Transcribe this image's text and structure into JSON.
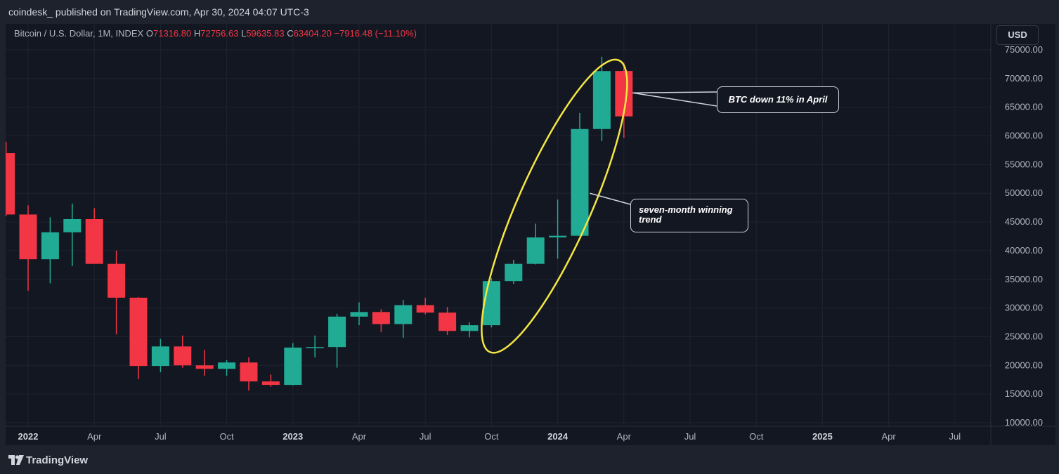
{
  "header": {
    "publish_line": "coindesk_ published on TradingView.com, Apr 30, 2024 04:07 UTC-3"
  },
  "legend": {
    "symbol": "Bitcoin / U.S. Dollar, 1M, INDEX",
    "open_label": "O",
    "open": "71316.80",
    "high_label": "H",
    "high": "72756.63",
    "low_label": "L",
    "low": "59635.83",
    "close_label": "C",
    "close": "63404.20",
    "change": "−7916.48 (−11.10%)"
  },
  "currency_button": "USD",
  "footer": {
    "brand": "TradingView"
  },
  "colors": {
    "up": "#22ab94",
    "down": "#f23645",
    "highlight_ellipse": "#f5e642",
    "background": "#131722"
  },
  "annotations": [
    {
      "text": "BTC down 11% in April"
    },
    {
      "text_line1": "seven-month winning",
      "text_line2": "trend"
    }
  ],
  "chart_data": {
    "type": "candlestick",
    "ylim": [
      10000,
      76000
    ],
    "y_ticks": [
      "75000.00",
      "70000.00",
      "65000.00",
      "60000.00",
      "55000.00",
      "50000.00",
      "45000.00",
      "40000.00",
      "35000.00",
      "30000.00",
      "25000.00",
      "20000.00",
      "15000.00",
      "10000.00"
    ],
    "x_ticks": [
      {
        "label": "2022",
        "index": 0,
        "bold": true
      },
      {
        "label": "Apr",
        "index": 3
      },
      {
        "label": "Jul",
        "index": 6
      },
      {
        "label": "Oct",
        "index": 9
      },
      {
        "label": "2023",
        "index": 12,
        "bold": true
      },
      {
        "label": "Apr",
        "index": 15
      },
      {
        "label": "Jul",
        "index": 18
      },
      {
        "label": "Oct",
        "index": 21
      },
      {
        "label": "2024",
        "index": 24,
        "bold": true
      },
      {
        "label": "Apr",
        "index": 27
      },
      {
        "label": "Jul",
        "index": 30
      },
      {
        "label": "Oct",
        "index": 33
      },
      {
        "label": "2025",
        "index": 36,
        "bold": true
      },
      {
        "label": "Apr",
        "index": 39
      },
      {
        "label": "Jul",
        "index": 42
      }
    ],
    "candles": [
      {
        "date": "2021-12",
        "open": 57000,
        "high": 59000,
        "low": 46000,
        "close": 46300
      },
      {
        "date": "2022-01",
        "open": 46300,
        "high": 47900,
        "low": 33000,
        "close": 38500
      },
      {
        "date": "2022-02",
        "open": 38500,
        "high": 45800,
        "low": 34300,
        "close": 43200
      },
      {
        "date": "2022-03",
        "open": 43200,
        "high": 48200,
        "low": 37300,
        "close": 45500
      },
      {
        "date": "2022-04",
        "open": 45500,
        "high": 47400,
        "low": 37700,
        "close": 37700
      },
      {
        "date": "2022-05",
        "open": 37700,
        "high": 40000,
        "low": 25400,
        "close": 31800
      },
      {
        "date": "2022-06",
        "open": 31800,
        "high": 31900,
        "low": 17600,
        "close": 19900
      },
      {
        "date": "2022-07",
        "open": 19900,
        "high": 24600,
        "low": 18800,
        "close": 23300
      },
      {
        "date": "2022-08",
        "open": 23300,
        "high": 25200,
        "low": 19600,
        "close": 20000
      },
      {
        "date": "2022-09",
        "open": 20000,
        "high": 22700,
        "low": 18200,
        "close": 19400
      },
      {
        "date": "2022-10",
        "open": 19400,
        "high": 20900,
        "low": 18200,
        "close": 20500
      },
      {
        "date": "2022-11",
        "open": 20500,
        "high": 21400,
        "low": 15600,
        "close": 17200
      },
      {
        "date": "2022-12",
        "open": 17200,
        "high": 18400,
        "low": 16300,
        "close": 16600
      },
      {
        "date": "2023-01",
        "open": 16600,
        "high": 23900,
        "low": 16500,
        "close": 23100
      },
      {
        "date": "2023-02",
        "open": 23100,
        "high": 25200,
        "low": 21400,
        "close": 23200
      },
      {
        "date": "2023-03",
        "open": 23200,
        "high": 29000,
        "low": 19600,
        "close": 28500
      },
      {
        "date": "2023-04",
        "open": 28500,
        "high": 31000,
        "low": 27000,
        "close": 29300
      },
      {
        "date": "2023-05",
        "open": 29300,
        "high": 29800,
        "low": 25800,
        "close": 27200
      },
      {
        "date": "2023-06",
        "open": 27200,
        "high": 31400,
        "low": 24800,
        "close": 30500
      },
      {
        "date": "2023-07",
        "open": 30500,
        "high": 31800,
        "low": 28900,
        "close": 29200
      },
      {
        "date": "2023-08",
        "open": 29200,
        "high": 30200,
        "low": 25300,
        "close": 26000
      },
      {
        "date": "2023-09",
        "open": 26000,
        "high": 27500,
        "low": 24900,
        "close": 27000
      },
      {
        "date": "2023-10",
        "open": 27000,
        "high": 35200,
        "low": 26600,
        "close": 34700
      },
      {
        "date": "2023-11",
        "open": 34700,
        "high": 38400,
        "low": 34200,
        "close": 37700
      },
      {
        "date": "2023-12",
        "open": 37700,
        "high": 44700,
        "low": 37600,
        "close": 42300
      },
      {
        "date": "2024-01",
        "open": 42300,
        "high": 48900,
        "low": 38600,
        "close": 42600
      },
      {
        "date": "2024-02",
        "open": 42600,
        "high": 64000,
        "low": 42800,
        "close": 61200
      },
      {
        "date": "2024-03",
        "open": 61200,
        "high": 73800,
        "low": 59100,
        "close": 71300
      },
      {
        "date": "2024-04",
        "open": 71316.8,
        "high": 72756.63,
        "low": 59635.83,
        "close": 63404.2
      }
    ]
  }
}
